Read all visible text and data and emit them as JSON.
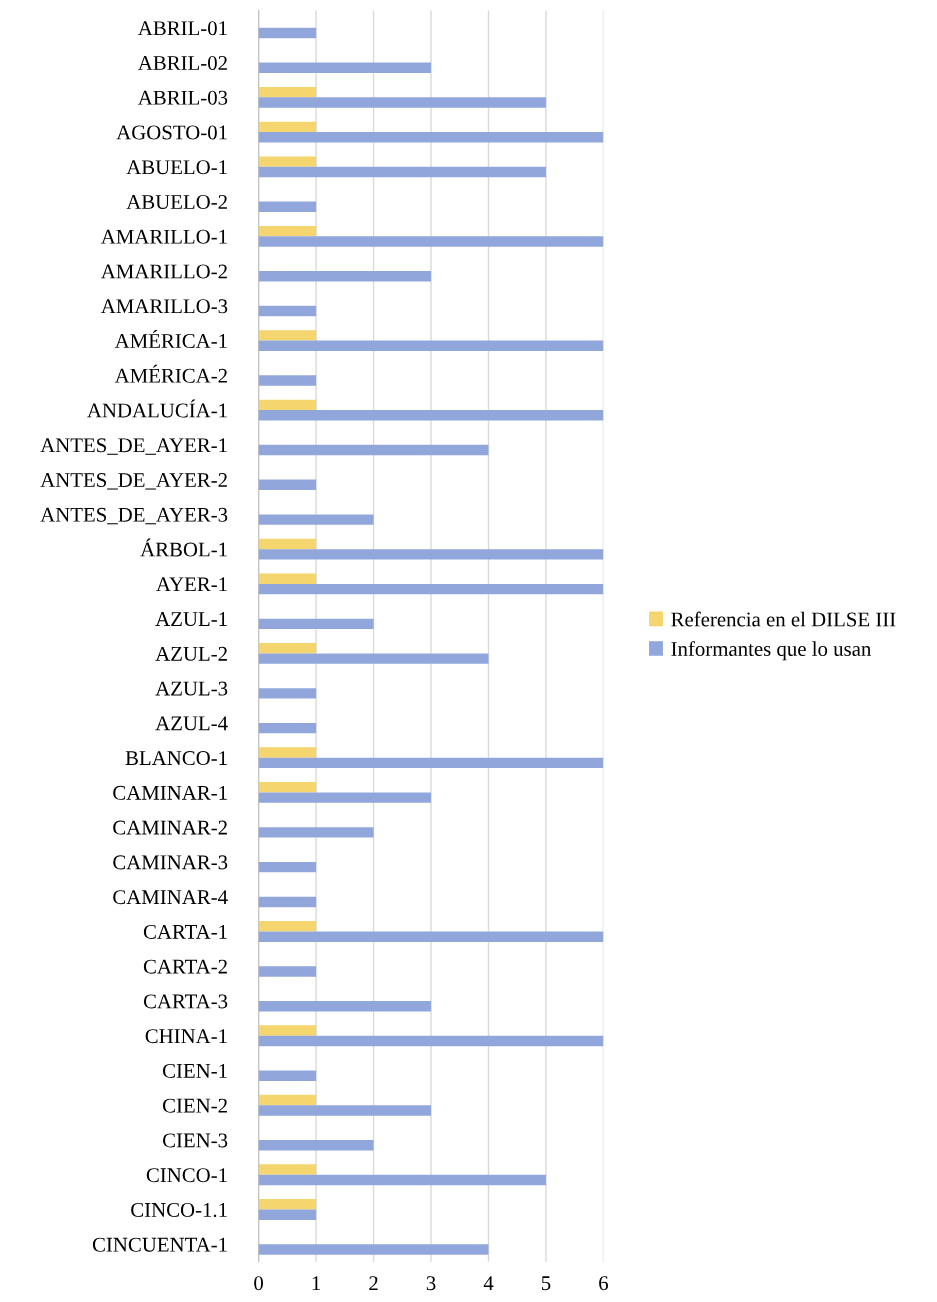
{
  "chart_data": {
    "type": "bar",
    "orientation": "horizontal",
    "categories": [
      "ABRIL-01",
      "ABRIL-02",
      "ABRIL-03",
      "AGOSTO-01",
      "ABUELO-1",
      "ABUELO-2",
      "AMARILLO-1",
      "AMARILLO-2",
      "AMARILLO-3",
      "AMÉRICA-1",
      "AMÉRICA-2",
      "ANDALUCÍA-1",
      "ANTES_DE_AYER-1",
      "ANTES_DE_AYER-2",
      "ANTES_DE_AYER-3",
      "ÁRBOL-1",
      "AYER-1",
      "AZUL-1",
      "AZUL-2",
      "AZUL-3",
      "AZUL-4",
      "BLANCO-1",
      "CAMINAR-1",
      "CAMINAR-2",
      "CAMINAR-3",
      "CAMINAR-4",
      "CARTA-1",
      "CARTA-2",
      "CARTA-3",
      "CHINA-1",
      "CIEN-1",
      "CIEN-2",
      "CIEN-3",
      "CINCO-1",
      "CINCO-1.1",
      "CINCUENTA-1"
    ],
    "series": [
      {
        "name": "Referencia en el DILSE III",
        "color": "#f5d56e",
        "values": [
          null,
          null,
          1,
          1,
          1,
          null,
          1,
          null,
          null,
          1,
          null,
          1,
          null,
          null,
          null,
          1,
          1,
          null,
          1,
          null,
          null,
          1,
          1,
          null,
          null,
          null,
          1,
          null,
          null,
          1,
          null,
          1,
          null,
          1,
          1,
          null
        ]
      },
      {
        "name": "Informantes que lo usan",
        "color": "#91a7dc",
        "values": [
          1,
          3,
          5,
          6,
          5,
          1,
          6,
          3,
          1,
          6,
          1,
          6,
          4,
          1,
          2,
          6,
          6,
          2,
          4,
          1,
          1,
          6,
          3,
          2,
          1,
          1,
          6,
          1,
          3,
          6,
          1,
          3,
          2,
          5,
          1,
          4
        ]
      }
    ],
    "xlim": [
      0,
      6
    ],
    "xticks": [
      0,
      1,
      2,
      3,
      4,
      5,
      6
    ],
    "grid": "x",
    "legend": "right"
  }
}
